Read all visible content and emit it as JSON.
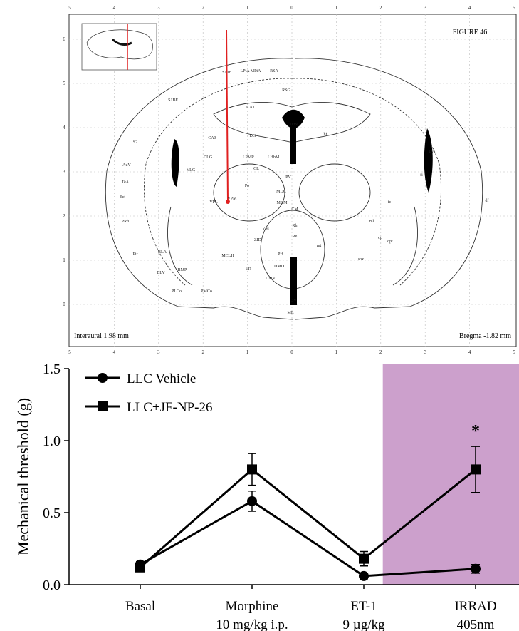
{
  "atlas": {
    "figure_label": "FIGURE 46",
    "interaural": "Interaural 1.98 mm",
    "bregma": "Bregma -1.82 mm",
    "x_ticks": [
      5,
      4,
      3,
      2,
      1,
      0,
      1,
      2,
      3,
      4,
      5
    ],
    "y_ticks": [
      6,
      5,
      4,
      3,
      2,
      1,
      0
    ],
    "regions": [
      "S1Tr",
      "LPtA MPtA",
      "RSA",
      "RSG",
      "S1BF",
      "S2",
      "AuV",
      "TeA",
      "Ect",
      "PRh",
      "CA1",
      "CA3",
      "DG",
      "DLG",
      "VLG",
      "LPMR",
      "LHbM",
      "CL",
      "Po",
      "VPM",
      "VPL",
      "PV",
      "MDC",
      "MDM",
      "CM",
      "Rh",
      "Re",
      "VM",
      "ZID",
      "PH",
      "DMD",
      "DMV",
      "LH",
      "MCLH",
      "BMP",
      "BLA",
      "BLV",
      "Pir",
      "PLCo",
      "PMCo",
      "ME",
      "3V",
      "D3V",
      "LV",
      "cp",
      "ic",
      "opt",
      "ml",
      "fi",
      "mt",
      "sox",
      "df",
      "hf"
    ]
  },
  "chart_data": {
    "type": "line",
    "ylabel": "Mechanical threshold (g)",
    "categories": [
      "Basal",
      "Morphine",
      "ET-1",
      "IRRAD"
    ],
    "category_sublabels": [
      null,
      "10 mg/kg i.p.",
      "9 µg/kg",
      "405nm"
    ],
    "series": [
      {
        "name": "LLC Vehicle",
        "color": "#000000",
        "marker": "circle",
        "values": [
          0.14,
          0.58,
          0.06,
          0.11
        ],
        "errors": [
          0.02,
          0.07,
          0.02,
          0.03
        ]
      },
      {
        "name": "LLC+JF-NP-26",
        "color": "#000000",
        "marker": "square",
        "values": [
          0.12,
          0.8,
          0.18,
          0.8
        ],
        "errors": [
          0.02,
          0.11,
          0.05,
          0.16
        ]
      }
    ],
    "ylim": [
      0,
      1.5
    ],
    "yticks": [
      {
        "value": 0,
        "label": "0.0"
      },
      0.5,
      {
        "value": 1,
        "label": "1.0"
      },
      1.5
    ],
    "shade_color": "#cca0cc",
    "annotation": "*"
  }
}
